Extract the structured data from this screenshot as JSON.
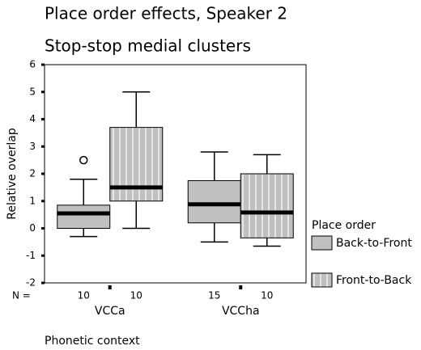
{
  "chart_data": {
    "type": "box",
    "title": "Place order effects, Speaker 2",
    "subtitle": "Stop-stop medial clusters",
    "x_label": "Phonetic context",
    "y_label": "Relative overlap",
    "categories": [
      "VCCa",
      "VCCha"
    ],
    "n_label": "N =",
    "legend_title": "Place order",
    "legend_position": "right",
    "ylim": [
      -2,
      6
    ],
    "yticks": [
      -2,
      -1,
      0,
      1,
      2,
      3,
      4,
      5,
      6
    ],
    "series": [
      {
        "name": "Back-to-Front",
        "color": "#c0c0c0",
        "n": [
          10,
          15
        ],
        "min": [
          -0.3,
          -0.5
        ],
        "q1": [
          0,
          0.2
        ],
        "median": [
          0.55,
          0.88
        ],
        "q3": [
          0.85,
          1.75
        ],
        "max": [
          1.8,
          2.8
        ],
        "outliers": [
          [
            2.5
          ],
          []
        ]
      },
      {
        "name": "Front-to-Back",
        "color": "#c0c0c0",
        "hatch": "vertical",
        "n": [
          10,
          10
        ],
        "min": [
          0,
          -0.65
        ],
        "q1": [
          1.0,
          -0.35
        ],
        "median": [
          1.5,
          0.58
        ],
        "q3": [
          3.7,
          2.0
        ],
        "max": [
          5.0,
          2.7
        ],
        "outliers": [
          [],
          []
        ]
      }
    ]
  }
}
